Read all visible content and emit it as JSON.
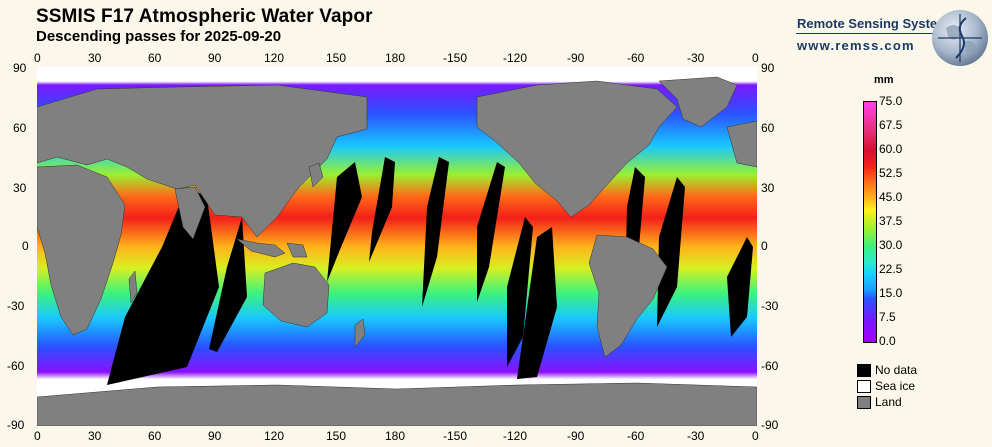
{
  "header": {
    "title": "SSMIS F17 Atmospheric Water Vapor",
    "subtitle": "Descending passes for 2025-09-20"
  },
  "branding": {
    "name": "Remote Sensing Systems",
    "url": "www.remss.com",
    "logo_icon": "globe-logo-icon"
  },
  "axes": {
    "lon_ticks": [
      "0",
      "30",
      "60",
      "90",
      "120",
      "150",
      "180",
      "-150",
      "-120",
      "-90",
      "-60",
      "-30",
      "0"
    ],
    "lat_ticks": [
      "90",
      "60",
      "30",
      "0",
      "-30",
      "-60",
      "-90"
    ]
  },
  "colorbar": {
    "unit": "mm",
    "labels": [
      "75.0",
      "67.5",
      "60.0",
      "52.5",
      "45.0",
      "37.5",
      "30.0",
      "22.5",
      "15.0",
      "7.5",
      "0.0"
    ],
    "range": [
      0.0,
      75.0
    ],
    "colors": [
      "#a100ff",
      "#2a52ff",
      "#18d0ff",
      "#3df27c",
      "#fff21a",
      "#ff6a18",
      "#f4201a",
      "#ff40e8"
    ]
  },
  "legend": [
    {
      "label": "No data",
      "color": "#000000"
    },
    {
      "label": "Sea ice",
      "color": "#ffffff"
    },
    {
      "label": "Land",
      "color": "#808080"
    }
  ],
  "palette": {
    "land": "#808080",
    "no_data": "#000000",
    "sea_ice": "#ffffff",
    "background": "#fbf7ea",
    "brand": "#1b3a66"
  }
}
